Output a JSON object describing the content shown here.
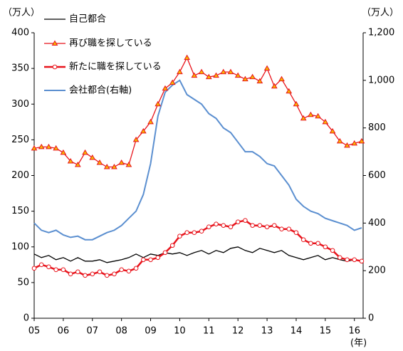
{
  "chart_data": {
    "type": "line",
    "y_label": "（万人）",
    "y2_label": "（万人）",
    "x_unit": "(年)",
    "x": [
      2005,
      2005.25,
      2005.5,
      2005.75,
      2006,
      2006.25,
      2006.5,
      2006.75,
      2007,
      2007.25,
      2007.5,
      2007.75,
      2008,
      2008.25,
      2008.5,
      2008.75,
      2009,
      2009.25,
      2009.5,
      2009.75,
      2010,
      2010.25,
      2010.5,
      2010.75,
      2011,
      2011.25,
      2011.5,
      2011.75,
      2012,
      2012.25,
      2012.5,
      2012.75,
      2013,
      2013.25,
      2013.5,
      2013.75,
      2014,
      2014.25,
      2014.5,
      2014.75,
      2015,
      2015.25,
      2015.5,
      2015.75,
      2016,
      2016.25
    ],
    "xlim": [
      2005,
      2016.3
    ],
    "xticks": [
      {
        "value": 2005,
        "label": "05"
      },
      {
        "value": 2006,
        "label": "06"
      },
      {
        "value": 2007,
        "label": "07"
      },
      {
        "value": 2008,
        "label": "08"
      },
      {
        "value": 2009,
        "label": "09"
      },
      {
        "value": 2010,
        "label": "10"
      },
      {
        "value": 2011,
        "label": "11"
      },
      {
        "value": 2012,
        "label": "12"
      },
      {
        "value": 2013,
        "label": "13"
      },
      {
        "value": 2014,
        "label": "14"
      },
      {
        "value": 2015,
        "label": "15"
      },
      {
        "value": 2016,
        "label": "16"
      }
    ],
    "ylim": [
      0,
      400
    ],
    "yticks": [
      0,
      50,
      100,
      150,
      200,
      250,
      300,
      350,
      400
    ],
    "y2lim": [
      0,
      1200
    ],
    "y2ticks": [
      0,
      200,
      400,
      600,
      800,
      {
        "value": 1000,
        "label": "1,000"
      },
      {
        "value": 1200,
        "label": "1,200"
      }
    ],
    "series": [
      {
        "name": "自己都合",
        "color": "#000000",
        "marker": "none",
        "values": [
          90,
          85,
          88,
          82,
          85,
          80,
          85,
          80,
          80,
          82,
          78,
          80,
          82,
          85,
          90,
          85,
          90,
          88,
          92,
          90,
          92,
          88,
          92,
          95,
          90,
          95,
          92,
          98,
          100,
          95,
          92,
          98,
          95,
          92,
          95,
          88,
          85,
          82,
          85,
          88,
          82,
          85,
          82,
          80,
          82,
          80
        ]
      },
      {
        "name": "再び職を探している",
        "color": "#e8141c",
        "marker": "triangle",
        "values": [
          238,
          240,
          240,
          238,
          232,
          220,
          215,
          232,
          225,
          218,
          212,
          212,
          218,
          215,
          250,
          262,
          275,
          300,
          322,
          330,
          345,
          365,
          340,
          345,
          338,
          340,
          345,
          345,
          340,
          335,
          338,
          332,
          350,
          325,
          335,
          318,
          300,
          280,
          285,
          283,
          275,
          262,
          248,
          242,
          245,
          248
        ]
      },
      {
        "name": "新たに職を探している",
        "color": "#e8141c",
        "marker": "circle",
        "values": [
          70,
          75,
          72,
          68,
          68,
          62,
          65,
          60,
          62,
          65,
          60,
          62,
          68,
          66,
          70,
          82,
          82,
          85,
          92,
          102,
          115,
          120,
          120,
          122,
          128,
          132,
          130,
          128,
          135,
          137,
          130,
          130,
          128,
          130,
          125,
          125,
          120,
          110,
          105,
          105,
          100,
          95,
          85,
          82,
          82,
          80
        ]
      },
      {
        "name": "会社都合(右軸)",
        "color": "#5b8fd0",
        "marker": "none",
        "axis": "y2",
        "values": [
          400,
          370,
          360,
          370,
          350,
          340,
          345,
          330,
          330,
          345,
          360,
          370,
          390,
          420,
          450,
          520,
          650,
          850,
          950,
          980,
          1000,
          940,
          920,
          900,
          860,
          840,
          800,
          780,
          740,
          700,
          700,
          680,
          650,
          640,
          600,
          560,
          500,
          470,
          450,
          440,
          420,
          410,
          400,
          390,
          370,
          380
        ]
      }
    ]
  }
}
